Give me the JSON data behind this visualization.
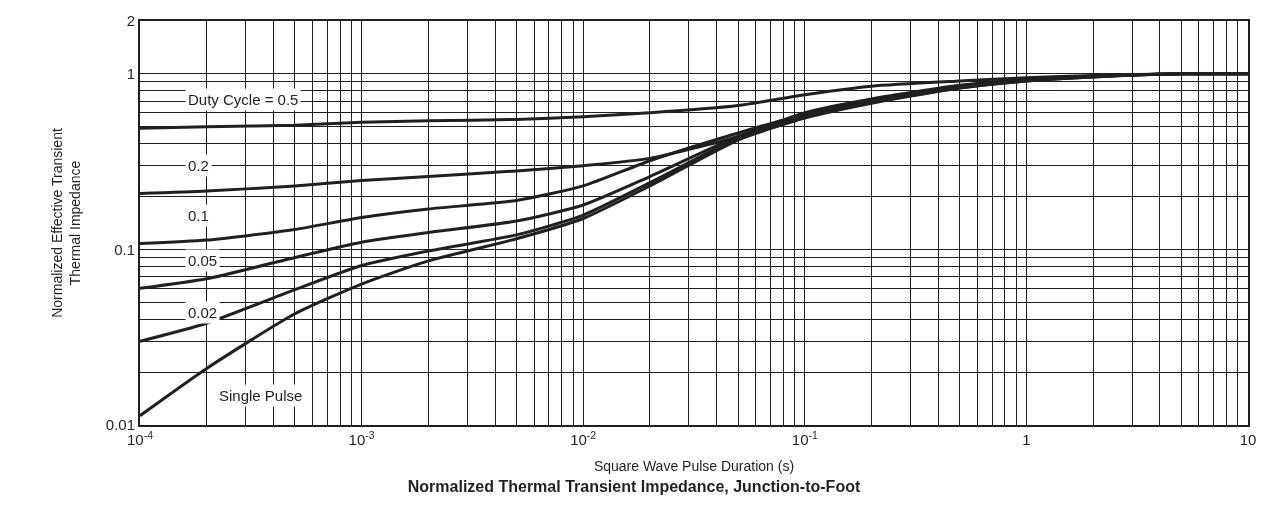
{
  "chart_data": {
    "type": "line",
    "title": "Normalized Thermal Transient Impedance, Junction-to-Foot",
    "xlabel": "Square Wave Pulse Duration (s)",
    "ylabel": "Normalized Effective Transient\nThermal Impedance",
    "log": "xy",
    "grid": true,
    "legend": false,
    "marker": "none",
    "line_style": "solid",
    "xlim": [
      0.0001,
      10
    ],
    "ylim": [
      0.01,
      2
    ],
    "xticks": [
      {
        "value": 0.0001,
        "label": "10$^{-4}$"
      },
      {
        "value": 0.0002,
        "label": null
      },
      {
        "value": 0.0003,
        "label": null
      },
      {
        "value": 0.0004,
        "label": null
      },
      {
        "value": 0.0005,
        "label": null
      },
      {
        "value": 0.0006,
        "label": null
      },
      {
        "value": 0.0007,
        "label": null
      },
      {
        "value": 0.0008,
        "label": null
      },
      {
        "value": 0.0009,
        "label": null
      },
      {
        "value": 0.001,
        "label": "10$^{-3}$"
      },
      {
        "value": 0.002,
        "label": null
      },
      {
        "value": 0.003,
        "label": null
      },
      {
        "value": 0.004,
        "label": null
      },
      {
        "value": 0.005,
        "label": null
      },
      {
        "value": 0.006,
        "label": null
      },
      {
        "value": 0.007,
        "label": null
      },
      {
        "value": 0.008,
        "label": null
      },
      {
        "value": 0.009,
        "label": null
      },
      {
        "value": 0.01,
        "label": "10$^{-2}$"
      },
      {
        "value": 0.02,
        "label": null
      },
      {
        "value": 0.03,
        "label": null
      },
      {
        "value": 0.04,
        "label": null
      },
      {
        "value": 0.05,
        "label": null
      },
      {
        "value": 0.06,
        "label": null
      },
      {
        "value": 0.07,
        "label": null
      },
      {
        "value": 0.08,
        "label": null
      },
      {
        "value": 0.09,
        "label": null
      },
      {
        "value": 0.1,
        "label": "10$^{-1}$"
      },
      {
        "value": 0.2,
        "label": null
      },
      {
        "value": 0.3,
        "label": null
      },
      {
        "value": 0.4,
        "label": null
      },
      {
        "value": 0.5,
        "label": null
      },
      {
        "value": 0.6,
        "label": null
      },
      {
        "value": 0.7,
        "label": null
      },
      {
        "value": 0.8,
        "label": null
      },
      {
        "value": 0.9,
        "label": null
      },
      1,
      {
        "value": 2,
        "label": null
      },
      {
        "value": 3,
        "label": null
      },
      {
        "value": 4,
        "label": null
      },
      {
        "value": 5,
        "label": null
      },
      {
        "value": 6,
        "label": null
      },
      {
        "value": 7,
        "label": null
      },
      {
        "value": 8,
        "label": null
      },
      {
        "value": 9,
        "label": null
      },
      10
    ],
    "yticks": [
      0.01,
      {
        "value": 0.02,
        "label": null
      },
      {
        "value": 0.03,
        "label": null
      },
      {
        "value": 0.04,
        "label": null
      },
      {
        "value": 0.05,
        "label": null
      },
      {
        "value": 0.06,
        "label": null
      },
      {
        "value": 0.07,
        "label": null
      },
      {
        "value": 0.08,
        "label": null
      },
      {
        "value": 0.09,
        "label": null
      },
      0.1,
      {
        "value": 0.2,
        "label": null
      },
      {
        "value": 0.3,
        "label": null
      },
      {
        "value": 0.4,
        "label": null
      },
      {
        "value": 0.5,
        "label": null
      },
      {
        "value": 0.6,
        "label": null
      },
      {
        "value": 0.7,
        "label": null
      },
      {
        "value": 0.8,
        "label": null
      },
      {
        "value": 0.9,
        "label": null
      },
      1,
      2
    ],
    "x": [
      0.0001,
      0.0002,
      0.0005,
      0.001,
      0.002,
      0.005,
      0.01,
      0.02,
      0.05,
      0.1,
      0.2,
      0.5,
      1,
      2,
      5,
      10
    ],
    "series": [
      {
        "name": "Duty Cycle = 0.5",
        "color": "#231f20",
        "values": [
          0.49,
          0.5,
          0.51,
          0.53,
          0.54,
          0.55,
          0.57,
          0.6,
          0.66,
          0.76,
          0.85,
          0.91,
          0.95,
          0.98,
          1.0,
          1.0
        ]
      },
      {
        "name": "0.2",
        "color": "#231f20",
        "values": [
          0.208,
          0.215,
          0.23,
          0.247,
          0.26,
          0.28,
          0.3,
          0.33,
          0.44,
          0.6,
          0.72,
          0.86,
          0.93,
          0.97,
          1.0,
          1.0
        ]
      },
      {
        "name": "0.1",
        "color": "#231f20",
        "values": [
          0.108,
          0.113,
          0.13,
          0.152,
          0.17,
          0.19,
          0.23,
          0.32,
          0.46,
          0.59,
          0.7,
          0.84,
          0.92,
          0.97,
          1.0,
          1.0
        ]
      },
      {
        "name": "0.05",
        "color": "#231f20",
        "values": [
          0.06,
          0.068,
          0.09,
          0.11,
          0.125,
          0.145,
          0.179,
          0.26,
          0.44,
          0.58,
          0.7,
          0.84,
          0.92,
          0.97,
          1.0,
          1.0
        ]
      },
      {
        "name": "0.02",
        "color": "#231f20",
        "values": [
          0.03,
          0.038,
          0.059,
          0.081,
          0.098,
          0.121,
          0.157,
          0.24,
          0.43,
          0.57,
          0.69,
          0.83,
          0.91,
          0.96,
          1.0,
          1.0
        ]
      },
      {
        "name": "Single Pulse",
        "color": "#231f20",
        "values": [
          0.0113,
          0.021,
          0.043,
          0.0635,
          0.086,
          0.115,
          0.15,
          0.23,
          0.42,
          0.56,
          0.68,
          0.83,
          0.91,
          0.96,
          1.0,
          1.0
        ]
      }
    ]
  }
}
